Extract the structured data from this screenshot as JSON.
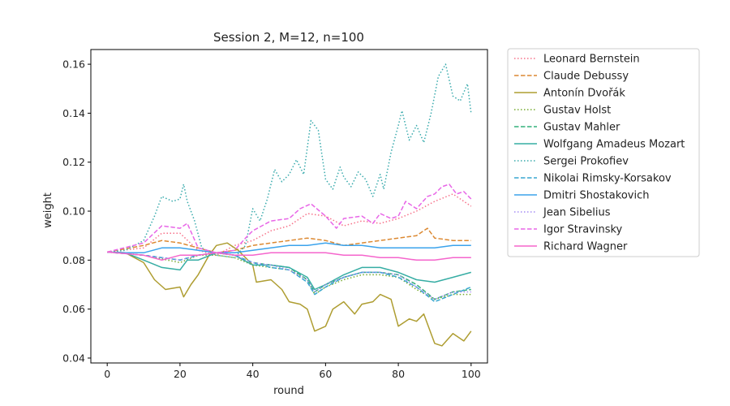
{
  "chart_data": {
    "type": "line",
    "title": "Session 2, M=12, n=100",
    "xlabel": "round",
    "ylabel": "weight",
    "xlim": [
      -4.5,
      104.5
    ],
    "ylim": [
      0.038,
      0.166
    ],
    "xticks": [
      0,
      20,
      40,
      60,
      80,
      100
    ],
    "yticks": [
      0.04,
      0.06,
      0.08,
      0.1,
      0.12,
      0.14,
      0.16
    ],
    "ytick_labels": [
      "0.04",
      "0.06",
      "0.08",
      "0.10",
      "0.12",
      "0.14",
      "0.16"
    ],
    "grid": false,
    "legend_position": "outside-right",
    "series": [
      {
        "name": "Leonard Bernstein",
        "color": "#f77189",
        "dash": "dotted",
        "points": [
          [
            0,
            0.0833
          ],
          [
            10,
            0.085
          ],
          [
            15,
            0.091
          ],
          [
            20,
            0.091
          ],
          [
            25,
            0.084
          ],
          [
            30,
            0.082
          ],
          [
            35,
            0.086
          ],
          [
            40,
            0.088
          ],
          [
            45,
            0.092
          ],
          [
            50,
            0.094
          ],
          [
            55,
            0.099
          ],
          [
            60,
            0.098
          ],
          [
            65,
            0.094
          ],
          [
            70,
            0.096
          ],
          [
            75,
            0.095
          ],
          [
            80,
            0.097
          ],
          [
            85,
            0.1
          ],
          [
            90,
            0.104
          ],
          [
            95,
            0.107
          ],
          [
            100,
            0.102
          ]
        ]
      },
      {
        "name": "Claude Debussy",
        "color": "#dc8932",
        "dash": "dashed",
        "points": [
          [
            0,
            0.0833
          ],
          [
            10,
            0.086
          ],
          [
            15,
            0.088
          ],
          [
            20,
            0.087
          ],
          [
            25,
            0.085
          ],
          [
            30,
            0.083
          ],
          [
            35,
            0.084
          ],
          [
            40,
            0.086
          ],
          [
            45,
            0.087
          ],
          [
            50,
            0.088
          ],
          [
            55,
            0.089
          ],
          [
            60,
            0.088
          ],
          [
            65,
            0.086
          ],
          [
            70,
            0.087
          ],
          [
            75,
            0.088
          ],
          [
            80,
            0.089
          ],
          [
            85,
            0.09
          ],
          [
            88,
            0.093
          ],
          [
            90,
            0.089
          ],
          [
            95,
            0.088
          ],
          [
            100,
            0.088
          ]
        ]
      },
      {
        "name": "Antonín Dvořák",
        "color": "#ae9d31",
        "dash": "solid",
        "points": [
          [
            0,
            0.0833
          ],
          [
            5,
            0.083
          ],
          [
            10,
            0.079
          ],
          [
            13,
            0.072
          ],
          [
            16,
            0.068
          ],
          [
            20,
            0.069
          ],
          [
            21,
            0.065
          ],
          [
            23,
            0.07
          ],
          [
            25,
            0.074
          ],
          [
            28,
            0.082
          ],
          [
            30,
            0.086
          ],
          [
            33,
            0.087
          ],
          [
            36,
            0.084
          ],
          [
            40,
            0.078
          ],
          [
            41,
            0.071
          ],
          [
            45,
            0.072
          ],
          [
            48,
            0.068
          ],
          [
            50,
            0.063
          ],
          [
            53,
            0.062
          ],
          [
            55,
            0.06
          ],
          [
            57,
            0.051
          ],
          [
            60,
            0.053
          ],
          [
            62,
            0.06
          ],
          [
            65,
            0.063
          ],
          [
            68,
            0.058
          ],
          [
            70,
            0.062
          ],
          [
            73,
            0.063
          ],
          [
            75,
            0.066
          ],
          [
            78,
            0.064
          ],
          [
            80,
            0.053
          ],
          [
            83,
            0.056
          ],
          [
            85,
            0.055
          ],
          [
            87,
            0.058
          ],
          [
            90,
            0.046
          ],
          [
            92,
            0.045
          ],
          [
            95,
            0.05
          ],
          [
            98,
            0.047
          ],
          [
            100,
            0.051
          ]
        ]
      },
      {
        "name": "Gustav Holst",
        "color": "#77ab31",
        "dash": "dotted",
        "points": [
          [
            0,
            0.0833
          ],
          [
            10,
            0.082
          ],
          [
            20,
            0.079
          ],
          [
            25,
            0.082
          ],
          [
            30,
            0.082
          ],
          [
            35,
            0.081
          ],
          [
            40,
            0.078
          ],
          [
            45,
            0.077
          ],
          [
            50,
            0.076
          ],
          [
            55,
            0.072
          ],
          [
            57,
            0.066
          ],
          [
            60,
            0.069
          ],
          [
            65,
            0.072
          ],
          [
            70,
            0.074
          ],
          [
            75,
            0.074
          ],
          [
            80,
            0.073
          ],
          [
            85,
            0.068
          ],
          [
            90,
            0.064
          ],
          [
            95,
            0.066
          ],
          [
            100,
            0.066
          ]
        ]
      },
      {
        "name": "Gustav Mahler",
        "color": "#33b07a",
        "dash": "dashed",
        "points": [
          [
            0,
            0.0833
          ],
          [
            10,
            0.082
          ],
          [
            20,
            0.08
          ],
          [
            25,
            0.082
          ],
          [
            30,
            0.083
          ],
          [
            35,
            0.082
          ],
          [
            40,
            0.079
          ],
          [
            45,
            0.078
          ],
          [
            50,
            0.077
          ],
          [
            55,
            0.072
          ],
          [
            57,
            0.067
          ],
          [
            60,
            0.07
          ],
          [
            65,
            0.073
          ],
          [
            70,
            0.075
          ],
          [
            75,
            0.075
          ],
          [
            80,
            0.074
          ],
          [
            85,
            0.07
          ],
          [
            90,
            0.064
          ],
          [
            95,
            0.067
          ],
          [
            100,
            0.068
          ]
        ]
      },
      {
        "name": "Wolfgang Amadeus Mozart",
        "color": "#36ada4",
        "dash": "solid",
        "points": [
          [
            0,
            0.0833
          ],
          [
            5,
            0.083
          ],
          [
            10,
            0.08
          ],
          [
            15,
            0.077
          ],
          [
            20,
            0.076
          ],
          [
            22,
            0.08
          ],
          [
            25,
            0.08
          ],
          [
            30,
            0.083
          ],
          [
            35,
            0.082
          ],
          [
            40,
            0.078
          ],
          [
            45,
            0.078
          ],
          [
            50,
            0.077
          ],
          [
            55,
            0.073
          ],
          [
            57,
            0.068
          ],
          [
            60,
            0.07
          ],
          [
            65,
            0.074
          ],
          [
            70,
            0.077
          ],
          [
            75,
            0.077
          ],
          [
            80,
            0.075
          ],
          [
            85,
            0.072
          ],
          [
            90,
            0.071
          ],
          [
            95,
            0.073
          ],
          [
            100,
            0.075
          ]
        ]
      },
      {
        "name": "Sergei Prokofiev",
        "color": "#38aaac",
        "dash": "dotted",
        "points": [
          [
            0,
            0.0833
          ],
          [
            5,
            0.084
          ],
          [
            10,
            0.088
          ],
          [
            13,
            0.098
          ],
          [
            15,
            0.106
          ],
          [
            18,
            0.104
          ],
          [
            20,
            0.105
          ],
          [
            21,
            0.111
          ],
          [
            22,
            0.104
          ],
          [
            24,
            0.096
          ],
          [
            26,
            0.085
          ],
          [
            30,
            0.082
          ],
          [
            35,
            0.081
          ],
          [
            38,
            0.086
          ],
          [
            40,
            0.101
          ],
          [
            42,
            0.096
          ],
          [
            44,
            0.105
          ],
          [
            46,
            0.117
          ],
          [
            48,
            0.112
          ],
          [
            50,
            0.115
          ],
          [
            52,
            0.121
          ],
          [
            54,
            0.115
          ],
          [
            56,
            0.137
          ],
          [
            58,
            0.133
          ],
          [
            60,
            0.113
          ],
          [
            62,
            0.109
          ],
          [
            64,
            0.118
          ],
          [
            65,
            0.114
          ],
          [
            67,
            0.11
          ],
          [
            69,
            0.116
          ],
          [
            71,
            0.113
          ],
          [
            73,
            0.106
          ],
          [
            75,
            0.115
          ],
          [
            76,
            0.109
          ],
          [
            78,
            0.124
          ],
          [
            80,
            0.135
          ],
          [
            81,
            0.141
          ],
          [
            83,
            0.129
          ],
          [
            85,
            0.135
          ],
          [
            87,
            0.128
          ],
          [
            89,
            0.14
          ],
          [
            91,
            0.155
          ],
          [
            93,
            0.16
          ],
          [
            95,
            0.147
          ],
          [
            97,
            0.145
          ],
          [
            99,
            0.152
          ],
          [
            100,
            0.14
          ]
        ]
      },
      {
        "name": "Nikolai Rimsky-Korsakov",
        "color": "#39a7d0",
        "dash": "dashed",
        "points": [
          [
            0,
            0.0833
          ],
          [
            10,
            0.082
          ],
          [
            20,
            0.08
          ],
          [
            25,
            0.082
          ],
          [
            30,
            0.083
          ],
          [
            35,
            0.082
          ],
          [
            40,
            0.079
          ],
          [
            45,
            0.077
          ],
          [
            50,
            0.076
          ],
          [
            55,
            0.071
          ],
          [
            57,
            0.066
          ],
          [
            60,
            0.069
          ],
          [
            65,
            0.073
          ],
          [
            70,
            0.075
          ],
          [
            75,
            0.075
          ],
          [
            80,
            0.073
          ],
          [
            85,
            0.069
          ],
          [
            90,
            0.063
          ],
          [
            95,
            0.066
          ],
          [
            100,
            0.069
          ]
        ]
      },
      {
        "name": "Dmitri Shostakovich",
        "color": "#3ba3ec",
        "dash": "solid",
        "points": [
          [
            0,
            0.0833
          ],
          [
            5,
            0.083
          ],
          [
            10,
            0.083
          ],
          [
            15,
            0.085
          ],
          [
            20,
            0.085
          ],
          [
            25,
            0.084
          ],
          [
            30,
            0.083
          ],
          [
            35,
            0.083
          ],
          [
            40,
            0.084
          ],
          [
            45,
            0.085
          ],
          [
            50,
            0.086
          ],
          [
            55,
            0.086
          ],
          [
            60,
            0.087
          ],
          [
            65,
            0.086
          ],
          [
            70,
            0.086
          ],
          [
            75,
            0.085
          ],
          [
            80,
            0.085
          ],
          [
            85,
            0.085
          ],
          [
            90,
            0.085
          ],
          [
            95,
            0.086
          ],
          [
            100,
            0.086
          ]
        ]
      },
      {
        "name": "Jean Sibelius",
        "color": "#a48cf4",
        "dash": "dotted",
        "points": [
          [
            0,
            0.0833
          ],
          [
            10,
            0.082
          ],
          [
            20,
            0.08
          ],
          [
            25,
            0.082
          ],
          [
            30,
            0.083
          ],
          [
            35,
            0.082
          ],
          [
            40,
            0.079
          ],
          [
            45,
            0.078
          ],
          [
            50,
            0.076
          ],
          [
            55,
            0.072
          ],
          [
            57,
            0.067
          ],
          [
            60,
            0.07
          ],
          [
            65,
            0.073
          ],
          [
            70,
            0.075
          ],
          [
            75,
            0.075
          ],
          [
            80,
            0.074
          ],
          [
            85,
            0.069
          ],
          [
            90,
            0.064
          ],
          [
            95,
            0.067
          ],
          [
            100,
            0.067
          ]
        ]
      },
      {
        "name": "Igor Stravinsky",
        "color": "#e866e7",
        "dash": "dashed",
        "points": [
          [
            0,
            0.0833
          ],
          [
            10,
            0.087
          ],
          [
            15,
            0.094
          ],
          [
            20,
            0.093
          ],
          [
            22,
            0.095
          ],
          [
            25,
            0.085
          ],
          [
            30,
            0.083
          ],
          [
            35,
            0.084
          ],
          [
            38,
            0.089
          ],
          [
            40,
            0.092
          ],
          [
            45,
            0.096
          ],
          [
            50,
            0.097
          ],
          [
            53,
            0.101
          ],
          [
            56,
            0.103
          ],
          [
            60,
            0.098
          ],
          [
            63,
            0.093
          ],
          [
            65,
            0.097
          ],
          [
            70,
            0.098
          ],
          [
            73,
            0.095
          ],
          [
            75,
            0.099
          ],
          [
            78,
            0.097
          ],
          [
            80,
            0.098
          ],
          [
            82,
            0.104
          ],
          [
            85,
            0.101
          ],
          [
            88,
            0.106
          ],
          [
            90,
            0.107
          ],
          [
            92,
            0.11
          ],
          [
            94,
            0.111
          ],
          [
            96,
            0.107
          ],
          [
            98,
            0.108
          ],
          [
            100,
            0.105
          ]
        ]
      },
      {
        "name": "Richard Wagner",
        "color": "#f565cc",
        "dash": "solid",
        "points": [
          [
            0,
            0.0833
          ],
          [
            10,
            0.082
          ],
          [
            15,
            0.08
          ],
          [
            20,
            0.082
          ],
          [
            25,
            0.082
          ],
          [
            30,
            0.083
          ],
          [
            35,
            0.082
          ],
          [
            40,
            0.082
          ],
          [
            45,
            0.083
          ],
          [
            50,
            0.083
          ],
          [
            55,
            0.083
          ],
          [
            60,
            0.083
          ],
          [
            65,
            0.082
          ],
          [
            70,
            0.082
          ],
          [
            75,
            0.081
          ],
          [
            80,
            0.081
          ],
          [
            85,
            0.08
          ],
          [
            90,
            0.08
          ],
          [
            95,
            0.081
          ],
          [
            100,
            0.081
          ]
        ]
      }
    ]
  }
}
